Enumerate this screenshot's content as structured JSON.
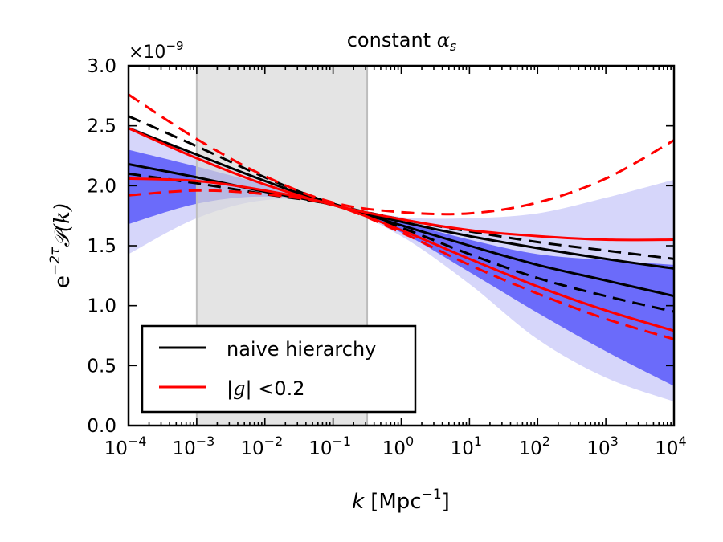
{
  "chart_data": {
    "type": "line",
    "title_text": "constant ",
    "title_symbol": "α",
    "title_subscript": "s",
    "multiplier": "×10",
    "multiplier_exp": "−9",
    "xlabel": {
      "var": "k",
      "unit": "[Mpc",
      "exp": "−1",
      "close": "]"
    },
    "ylabel": {
      "base": "e",
      "exp": "−2τ",
      "func": "𝒫(k)"
    },
    "xscale": "log",
    "xlim_log10": [
      -4,
      4
    ],
    "ylim": [
      0,
      3.0
    ],
    "x_ticks": [
      {
        "base": "10",
        "exp": "−4",
        "log10": -4
      },
      {
        "base": "10",
        "exp": "−3",
        "log10": -3
      },
      {
        "base": "10",
        "exp": "−2",
        "log10": -2
      },
      {
        "base": "10",
        "exp": "−1",
        "log10": -1
      },
      {
        "base": "10",
        "exp": "0",
        "log10": 0
      },
      {
        "base": "10",
        "exp": "1",
        "log10": 1
      },
      {
        "base": "10",
        "exp": "2",
        "log10": 2
      },
      {
        "base": "10",
        "exp": "3",
        "log10": 3
      },
      {
        "base": "10",
        "exp": "4",
        "log10": 4
      }
    ],
    "y_ticks": [
      {
        "label": "0.0",
        "value": 0.0
      },
      {
        "label": "0.5",
        "value": 0.5
      },
      {
        "label": "1.0",
        "value": 1.0
      },
      {
        "label": "1.5",
        "value": 1.5
      },
      {
        "label": "2.0",
        "value": 2.0
      },
      {
        "label": "2.5",
        "value": 2.5
      },
      {
        "label": "3.0",
        "value": 3.0
      }
    ],
    "shaded_region_log10": [
      -3,
      -0.5
    ],
    "bands": [
      {
        "name": "outer band",
        "color": "#d6d6fa",
        "upper": [
          [
            -4,
            2.5
          ],
          [
            -3,
            2.26
          ],
          [
            -2,
            2.06
          ],
          [
            -1,
            1.86
          ],
          [
            0,
            1.74
          ],
          [
            1,
            1.73
          ],
          [
            2,
            1.77
          ],
          [
            3,
            1.9
          ],
          [
            4,
            2.05
          ]
        ],
        "lower": [
          [
            -4,
            1.43
          ],
          [
            -3,
            1.73
          ],
          [
            -2,
            1.88
          ],
          [
            -1,
            1.84
          ],
          [
            0,
            1.58
          ],
          [
            1,
            1.18
          ],
          [
            2,
            0.72
          ],
          [
            3,
            0.4
          ],
          [
            4,
            0.2
          ]
        ]
      },
      {
        "name": "inner band",
        "color": "#6b6bfa",
        "upper": [
          [
            -4,
            2.3
          ],
          [
            -3,
            2.16
          ],
          [
            -2,
            2.01
          ],
          [
            -1,
            1.86
          ],
          [
            0,
            1.7
          ],
          [
            1,
            1.55
          ],
          [
            2,
            1.43
          ],
          [
            3,
            1.38
          ],
          [
            4,
            1.34
          ]
        ],
        "lower": [
          [
            -4,
            1.68
          ],
          [
            -3,
            1.85
          ],
          [
            -2,
            1.91
          ],
          [
            -1,
            1.84
          ],
          [
            0,
            1.61
          ],
          [
            1,
            1.28
          ],
          [
            2,
            0.94
          ],
          [
            3,
            0.62
          ],
          [
            4,
            0.33
          ]
        ]
      }
    ],
    "series": [
      {
        "name": "naive hierarchy upper",
        "color": "#000000",
        "dash": false,
        "points": [
          [
            -4,
            2.48
          ],
          [
            -3,
            2.26
          ],
          [
            -2,
            2.04
          ],
          [
            -1,
            1.84
          ],
          [
            0,
            1.7
          ],
          [
            1,
            1.58
          ],
          [
            2,
            1.48
          ],
          [
            3,
            1.39
          ],
          [
            4,
            1.31
          ]
        ]
      },
      {
        "name": "naive hierarchy lower",
        "color": "#000000",
        "dash": false,
        "points": [
          [
            -4,
            2.18
          ],
          [
            -3,
            2.07
          ],
          [
            -2,
            1.95
          ],
          [
            -1,
            1.84
          ],
          [
            0,
            1.67
          ],
          [
            1,
            1.5
          ],
          [
            2,
            1.34
          ],
          [
            3,
            1.21
          ],
          [
            4,
            1.08
          ]
        ]
      },
      {
        "name": "naive hierarchy dashed upper",
        "color": "#000000",
        "dash": true,
        "points": [
          [
            -4,
            2.58
          ],
          [
            -3,
            2.33
          ],
          [
            -2,
            2.07
          ],
          [
            -1,
            1.85
          ],
          [
            0,
            1.72
          ],
          [
            1,
            1.62
          ],
          [
            2,
            1.53
          ],
          [
            3,
            1.46
          ],
          [
            4,
            1.39
          ]
        ]
      },
      {
        "name": "naive hierarchy dashed lower",
        "color": "#000000",
        "dash": true,
        "points": [
          [
            -4,
            2.1
          ],
          [
            -3,
            2.02
          ],
          [
            -2,
            1.93
          ],
          [
            -1,
            1.84
          ],
          [
            0,
            1.65
          ],
          [
            1,
            1.43
          ],
          [
            2,
            1.23
          ],
          [
            3,
            1.08
          ],
          [
            4,
            0.95
          ]
        ]
      },
      {
        "name": "|g|<0.2 upper",
        "color": "#ff0000",
        "dash": false,
        "points": [
          [
            -4,
            2.48
          ],
          [
            -3,
            2.23
          ],
          [
            -2,
            2.01
          ],
          [
            -1,
            1.84
          ],
          [
            0,
            1.72
          ],
          [
            1,
            1.63
          ],
          [
            2,
            1.58
          ],
          [
            3,
            1.55
          ],
          [
            4,
            1.55
          ]
        ]
      },
      {
        "name": "|g|<0.2 lower",
        "color": "#ff0000",
        "dash": false,
        "points": [
          [
            -4,
            2.06
          ],
          [
            -3,
            2.04
          ],
          [
            -2,
            1.96
          ],
          [
            -1,
            1.84
          ],
          [
            0,
            1.63
          ],
          [
            1,
            1.39
          ],
          [
            2,
            1.16
          ],
          [
            3,
            0.96
          ],
          [
            4,
            0.79
          ]
        ]
      },
      {
        "name": "|g|<0.2 dashed upper",
        "color": "#ff0000",
        "dash": true,
        "points": [
          [
            -4,
            2.76
          ],
          [
            -3,
            2.39
          ],
          [
            -2,
            2.08
          ],
          [
            -1,
            1.86
          ],
          [
            0,
            1.78
          ],
          [
            1,
            1.77
          ],
          [
            2,
            1.86
          ],
          [
            3,
            2.06
          ],
          [
            4,
            2.38
          ]
        ]
      },
      {
        "name": "|g|<0.2 dashed lower",
        "color": "#ff0000",
        "dash": true,
        "points": [
          [
            -4,
            1.92
          ],
          [
            -3,
            1.96
          ],
          [
            -2,
            1.93
          ],
          [
            -1,
            1.84
          ],
          [
            0,
            1.61
          ],
          [
            1,
            1.34
          ],
          [
            2,
            1.1
          ],
          [
            3,
            0.89
          ],
          [
            4,
            0.72
          ]
        ]
      }
    ],
    "legend": {
      "position": "lower-left",
      "entries": [
        {
          "label": "naive hierarchy",
          "color": "#000000"
        },
        {
          "label_prefix": "|",
          "label_var": "g",
          "label_suffix": "| <0.2",
          "color": "#ff0000"
        }
      ]
    }
  }
}
